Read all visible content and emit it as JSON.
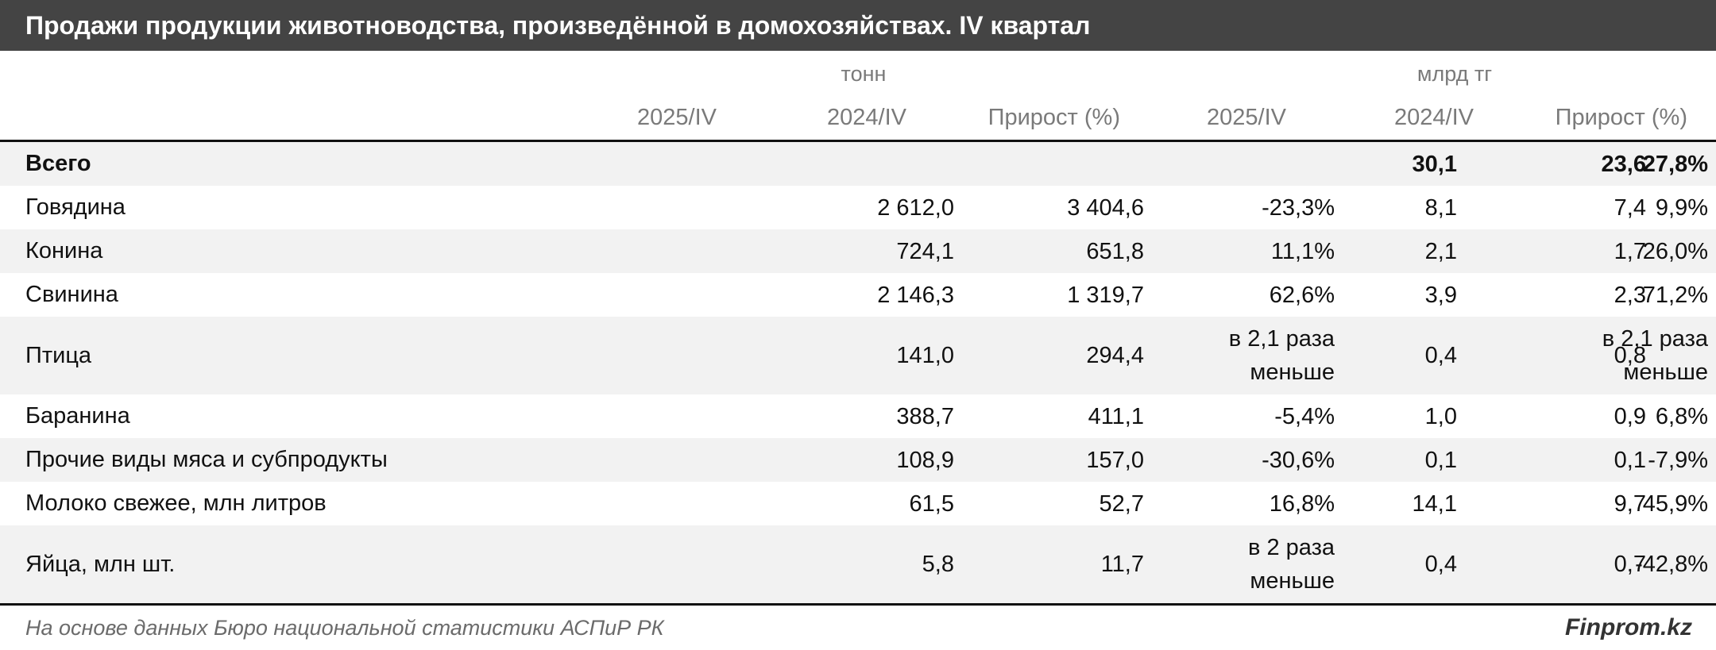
{
  "title": "Продажи продукции животноводства, произведённой в домохозяйствах. IV квартал",
  "units": {
    "volume": "тонн",
    "value": "млрд тг"
  },
  "columns": [
    "2025/IV",
    "2024/IV",
    "Прирост (%)",
    "2025/IV",
    "2024/IV",
    "Прирост (%)"
  ],
  "rows": [
    {
      "name": "Всего",
      "cells": [
        "",
        "",
        "",
        "30,1",
        "23,6",
        "27,8%"
      ]
    },
    {
      "name": "Говядина",
      "cells": [
        "2 612,0",
        "3 404,6",
        "-23,3%",
        "8,1",
        "7,4",
        "9,9%"
      ]
    },
    {
      "name": "Конина",
      "cells": [
        "724,1",
        "651,8",
        "11,1%",
        "2,1",
        "1,7",
        "26,0%"
      ]
    },
    {
      "name": "Свинина",
      "cells": [
        "2 146,3",
        "1 319,7",
        "62,6%",
        "3,9",
        "2,3",
        "71,2%"
      ]
    },
    {
      "name": "Птица",
      "cells": [
        "141,0",
        "294,4",
        "в 2,1 раза меньше",
        "0,4",
        "0,8",
        "в 2,1 раза меньше"
      ]
    },
    {
      "name": "Баранина",
      "cells": [
        "388,7",
        "411,1",
        "-5,4%",
        "1,0",
        "0,9",
        "6,8%"
      ]
    },
    {
      "name": "Прочие виды мяса и субпродукты",
      "cells": [
        "108,9",
        "157,0",
        "-30,6%",
        "0,1",
        "0,1",
        "-7,9%"
      ]
    },
    {
      "name": "Молоко свежее, млн литров",
      "cells": [
        "61,5",
        "52,7",
        "16,8%",
        "14,1",
        "9,7",
        "45,9%"
      ]
    },
    {
      "name": "Яйца, млн шт.",
      "cells": [
        "5,8",
        "11,7",
        "в 2 раза меньше",
        "0,4",
        "0,7",
        "-42,8%"
      ]
    }
  ],
  "footer": {
    "source": "На основе данных Бюро национальной статистики АСПиР РК",
    "brand": "Finprom.kz"
  }
}
